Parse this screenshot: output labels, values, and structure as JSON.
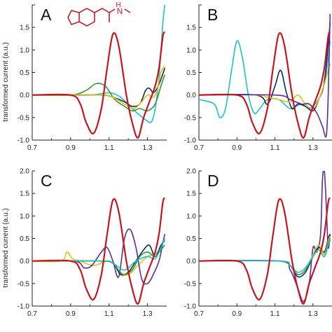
{
  "figure": {
    "ylabel_left": "transformed current (a.u.)",
    "molecule_label": "H"
  },
  "colors": {
    "red": "#c8141e",
    "cyan": "#22c0c8",
    "green": "#2e9a3a",
    "navy": "#14265e",
    "yellow": "#e6bf10",
    "purple": "#5b2ca0",
    "axis": "#222222",
    "molecule": "#c0202a"
  },
  "chart_data": [
    {
      "type": "line",
      "panel": "A",
      "xlim": [
        0.7,
        1.4
      ],
      "ylim": [
        -1.0,
        2.0
      ],
      "xticks": [
        "0.7",
        "0.9",
        "1.1",
        "1.3"
      ],
      "yticks": [
        "-1.0",
        "-0.5",
        "0.0",
        "0.5",
        "1.0",
        "1.5"
      ],
      "series": [
        {
          "color": "red",
          "x": [
            0.7,
            0.9,
            0.95,
            0.98,
            1.02,
            1.06,
            1.09,
            1.12,
            1.15,
            1.19,
            1.22,
            1.25,
            1.28,
            1.31,
            1.34,
            1.36,
            1.38,
            1.39
          ],
          "y": [
            0.0,
            0.0,
            -0.2,
            -0.6,
            -0.85,
            -0.3,
            0.6,
            1.35,
            1.1,
            0.0,
            -0.6,
            -0.95,
            -0.5,
            -0.15,
            0.2,
            0.6,
            1.3,
            1.4
          ]
        },
        {
          "color": "cyan",
          "x": [
            0.7,
            1.0,
            1.1,
            1.16,
            1.22,
            1.26,
            1.29,
            1.32,
            1.34,
            1.36,
            1.38,
            1.39
          ],
          "y": [
            0.0,
            0.0,
            0.05,
            -0.05,
            -0.3,
            -0.45,
            -0.55,
            -0.6,
            -0.3,
            0.4,
            1.6,
            2.0
          ]
        },
        {
          "color": "green",
          "x": [
            0.7,
            0.9,
            0.98,
            1.03,
            1.08,
            1.13,
            1.18,
            1.22,
            1.26,
            1.3,
            1.34,
            1.37,
            1.39
          ],
          "y": [
            0.0,
            0.0,
            0.1,
            0.25,
            0.2,
            -0.1,
            -0.25,
            -0.35,
            -0.3,
            -0.35,
            -0.2,
            0.2,
            0.45
          ]
        },
        {
          "color": "navy",
          "x": [
            0.7,
            1.05,
            1.12,
            1.18,
            1.22,
            1.26,
            1.29,
            1.31,
            1.33,
            1.35,
            1.37,
            1.39
          ],
          "y": [
            0.0,
            0.0,
            -0.05,
            -0.15,
            -0.25,
            -0.2,
            0.1,
            0.15,
            0.05,
            0.15,
            0.35,
            0.6
          ]
        },
        {
          "color": "yellow",
          "x": [
            0.7,
            1.05,
            1.12,
            1.18,
            1.23,
            1.27,
            1.3,
            1.33,
            1.35,
            1.37,
            1.39
          ],
          "y": [
            0.0,
            0.0,
            -0.05,
            -0.2,
            -0.3,
            -0.15,
            0.0,
            -0.05,
            0.1,
            0.5,
            0.65
          ]
        }
      ]
    },
    {
      "type": "line",
      "panel": "B",
      "xlim": [
        0.7,
        1.4
      ],
      "ylim": [
        -1.0,
        2.0
      ],
      "xticks": [
        "0.7",
        "0.9",
        "1.1",
        "1.3"
      ],
      "yticks": [
        "-1.0",
        "-0.5",
        "0.0",
        "0.5",
        "1.0",
        "1.5"
      ],
      "series": [
        {
          "color": "red",
          "x": [
            0.7,
            0.9,
            0.95,
            0.98,
            1.02,
            1.06,
            1.09,
            1.12,
            1.15,
            1.19,
            1.22,
            1.25,
            1.28,
            1.31,
            1.34,
            1.36,
            1.38,
            1.39
          ],
          "y": [
            0.0,
            0.0,
            -0.2,
            -0.6,
            -0.85,
            -0.3,
            0.6,
            1.35,
            1.1,
            0.0,
            -0.6,
            -0.95,
            -0.5,
            -0.15,
            0.2,
            0.6,
            1.3,
            1.4
          ]
        },
        {
          "color": "cyan",
          "x": [
            0.7,
            0.78,
            0.81,
            0.84,
            0.87,
            0.9,
            0.93,
            0.96,
            0.99,
            1.02,
            1.06,
            1.12,
            1.18,
            1.24,
            1.28,
            1.32,
            1.35,
            1.37,
            1.39
          ],
          "y": [
            -0.1,
            -0.2,
            -0.5,
            -0.3,
            0.5,
            1.2,
            0.8,
            0.0,
            -0.4,
            -0.3,
            -0.1,
            -0.1,
            -0.3,
            -0.2,
            -0.3,
            -0.15,
            0.1,
            0.5,
            1.2
          ]
        },
        {
          "color": "navy",
          "x": [
            0.7,
            1.0,
            1.06,
            1.1,
            1.13,
            1.16,
            1.19,
            1.22,
            1.26,
            1.3,
            1.33,
            1.36,
            1.39
          ],
          "y": [
            0.0,
            0.0,
            -0.2,
            0.2,
            0.55,
            0.05,
            -0.3,
            -0.2,
            -0.25,
            -0.35,
            -0.1,
            0.3,
            1.6
          ]
        },
        {
          "color": "yellow",
          "x": [
            0.7,
            1.0,
            1.06,
            1.12,
            1.18,
            1.22,
            1.26,
            1.3,
            1.33,
            1.36,
            1.39
          ],
          "y": [
            0.0,
            0.0,
            -0.05,
            -0.1,
            -0.15,
            0.0,
            -0.2,
            -0.3,
            -0.1,
            0.25,
            0.7
          ]
        },
        {
          "color": "purple",
          "x": [
            0.7,
            1.1,
            1.18,
            1.24,
            1.28,
            1.32,
            1.35,
            1.37,
            1.38,
            1.39
          ],
          "y": [
            0.0,
            0.0,
            -0.1,
            -0.2,
            -0.2,
            -0.4,
            -0.7,
            -0.9,
            0.0,
            1.8
          ]
        }
      ]
    },
    {
      "type": "line",
      "panel": "C",
      "xlim": [
        0.7,
        1.4
      ],
      "ylim": [
        -1.0,
        2.0
      ],
      "xticks": [
        "0.7",
        "0.9",
        "1.1",
        "1.3"
      ],
      "yticks": [
        "-1.0",
        "-0.5",
        "0.0",
        "0.5",
        "1.0",
        "1.5"
      ],
      "series": [
        {
          "color": "red",
          "x": [
            0.7,
            0.9,
            0.95,
            0.98,
            1.02,
            1.06,
            1.09,
            1.12,
            1.15,
            1.19,
            1.22,
            1.25,
            1.28,
            1.31,
            1.34,
            1.36,
            1.38,
            1.39
          ],
          "y": [
            0.0,
            0.0,
            -0.2,
            -0.6,
            -0.85,
            -0.3,
            0.6,
            1.35,
            1.1,
            0.0,
            -0.6,
            -0.95,
            -0.5,
            -0.15,
            0.2,
            0.6,
            1.3,
            1.4
          ]
        },
        {
          "color": "yellow",
          "x": [
            0.7,
            0.85,
            0.88,
            0.91,
            0.95,
            1.02,
            1.1,
            1.16,
            1.2,
            1.25,
            1.3,
            1.34,
            1.37,
            1.39
          ],
          "y": [
            0.0,
            0.0,
            0.2,
            0.05,
            0.0,
            -0.1,
            0.0,
            -0.25,
            -0.3,
            -0.1,
            0.1,
            0.15,
            0.3,
            0.5
          ]
        },
        {
          "color": "purple",
          "x": [
            0.7,
            0.92,
            0.97,
            1.01,
            1.06,
            1.09,
            1.12,
            1.15,
            1.18,
            1.21,
            1.24,
            1.27,
            1.3,
            1.33,
            1.36,
            1.38,
            1.39
          ],
          "y": [
            0.0,
            0.0,
            -0.15,
            -0.1,
            0.2,
            0.3,
            0.0,
            -0.35,
            0.5,
            0.7,
            0.3,
            -0.4,
            -0.5,
            -0.3,
            0.0,
            0.4,
            0.6
          ]
        },
        {
          "color": "navy",
          "x": [
            0.7,
            1.05,
            1.12,
            1.16,
            1.2,
            1.24,
            1.28,
            1.31,
            1.34,
            1.37,
            1.39
          ],
          "y": [
            0.0,
            0.0,
            -0.05,
            -0.3,
            -0.25,
            0.0,
            0.25,
            0.35,
            0.1,
            0.35,
            0.45
          ]
        },
        {
          "color": "green",
          "x": [
            0.7,
            1.05,
            1.12,
            1.17,
            1.22,
            1.26,
            1.3,
            1.34,
            1.37,
            1.39
          ],
          "y": [
            0.0,
            0.0,
            -0.05,
            -0.3,
            -0.2,
            0.1,
            0.2,
            0.1,
            0.25,
            0.35
          ]
        },
        {
          "color": "cyan",
          "x": [
            0.7,
            1.05,
            1.12,
            1.18,
            1.24,
            1.3,
            1.34,
            1.37,
            1.39
          ],
          "y": [
            0.0,
            0.0,
            -0.05,
            -0.2,
            0.0,
            0.1,
            0.05,
            0.3,
            0.5
          ]
        }
      ]
    },
    {
      "type": "line",
      "panel": "D",
      "xlim": [
        0.7,
        1.4
      ],
      "ylim": [
        -1.0,
        2.0
      ],
      "xticks": [
        "0.7",
        "0.9",
        "1.1",
        "1.3"
      ],
      "yticks": [
        "-1.0",
        "-0.5",
        "0.0",
        "0.5",
        "1.0",
        "1.5"
      ],
      "series": [
        {
          "color": "red",
          "x": [
            0.7,
            0.9,
            0.95,
            0.98,
            1.02,
            1.06,
            1.09,
            1.12,
            1.15,
            1.19,
            1.22,
            1.25,
            1.28,
            1.31,
            1.34,
            1.36,
            1.38,
            1.39
          ],
          "y": [
            0.0,
            0.0,
            -0.2,
            -0.6,
            -0.85,
            -0.3,
            0.6,
            1.35,
            1.1,
            0.0,
            -0.6,
            -0.95,
            -0.5,
            -0.15,
            0.2,
            0.6,
            1.3,
            1.4
          ]
        },
        {
          "color": "purple",
          "x": [
            0.7,
            1.12,
            1.18,
            1.22,
            1.25,
            1.28,
            1.3,
            1.32,
            1.34,
            1.35,
            1.36,
            1.37,
            1.38,
            1.39
          ],
          "y": [
            0.0,
            0.0,
            -0.2,
            -0.6,
            -0.9,
            -0.5,
            0.3,
            0.2,
            0.6,
            1.8,
            2.0,
            1.2,
            0.3,
            0.6
          ]
        },
        {
          "color": "navy",
          "x": [
            0.7,
            1.12,
            1.18,
            1.22,
            1.26,
            1.3,
            1.33,
            1.36,
            1.38,
            1.39
          ],
          "y": [
            0.0,
            0.0,
            -0.1,
            -0.35,
            -0.25,
            0.1,
            0.3,
            0.2,
            0.5,
            0.6
          ]
        },
        {
          "color": "yellow",
          "x": [
            0.7,
            1.12,
            1.18,
            1.22,
            1.26,
            1.3,
            1.33,
            1.36,
            1.38,
            1.39
          ],
          "y": [
            0.0,
            0.0,
            -0.1,
            -0.3,
            -0.2,
            0.15,
            0.35,
            0.15,
            0.45,
            0.55
          ]
        },
        {
          "color": "green",
          "x": [
            0.7,
            1.12,
            1.18,
            1.22,
            1.26,
            1.3,
            1.33,
            1.36,
            1.38,
            1.39
          ],
          "y": [
            0.0,
            0.0,
            -0.1,
            -0.3,
            -0.2,
            0.1,
            0.25,
            0.1,
            0.4,
            0.5
          ]
        },
        {
          "color": "cyan",
          "x": [
            0.7,
            1.12,
            1.18,
            1.22,
            1.26,
            1.3,
            1.33,
            1.36,
            1.38,
            1.39
          ],
          "y": [
            0.0,
            0.0,
            -0.1,
            -0.25,
            -0.15,
            0.1,
            0.25,
            0.1,
            0.35,
            0.45
          ]
        }
      ]
    }
  ]
}
